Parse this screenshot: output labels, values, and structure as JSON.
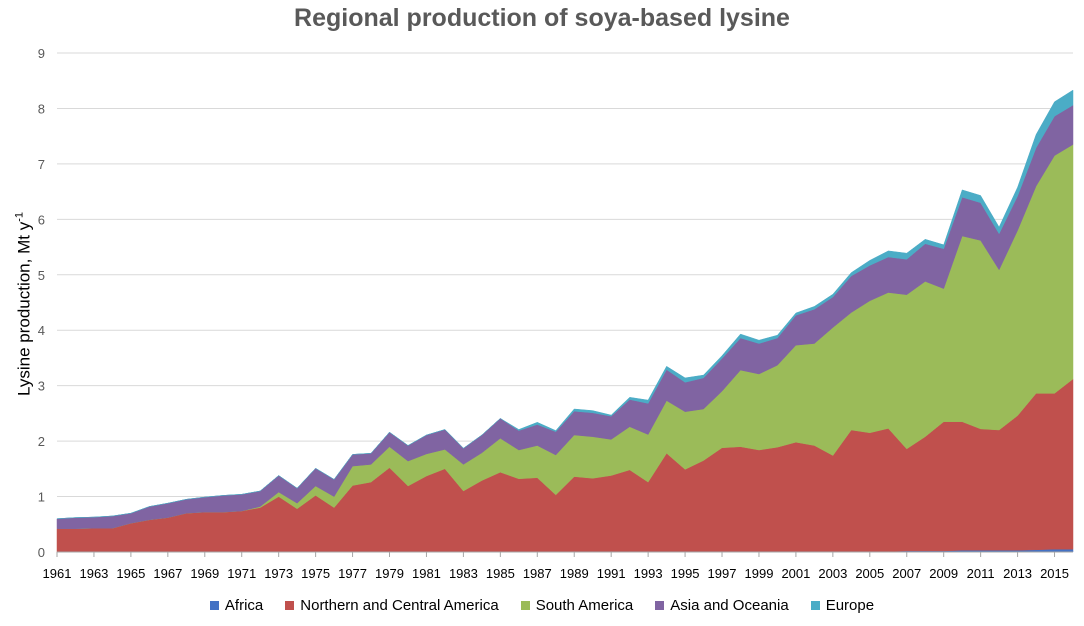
{
  "chart_data": {
    "type": "area",
    "stacked": true,
    "title": "Regional production of soya-based lysine",
    "ylabel": "Lysine production, Mt y",
    "ylabel_superscript": "-1",
    "xlabel": "",
    "ylim": [
      0,
      9
    ],
    "yticks": [
      0,
      1,
      2,
      3,
      4,
      5,
      6,
      7,
      8,
      9
    ],
    "xlim": [
      1961,
      2016
    ],
    "xticks": [
      1961,
      1963,
      1965,
      1967,
      1969,
      1971,
      1973,
      1975,
      1977,
      1979,
      1981,
      1983,
      1985,
      1987,
      1989,
      1991,
      1993,
      1995,
      1997,
      1999,
      2001,
      2003,
      2005,
      2007,
      2009,
      2011,
      2013,
      2015
    ],
    "grid": "horizontal",
    "legend_position": "bottom",
    "x": [
      1961,
      1962,
      1963,
      1964,
      1965,
      1966,
      1967,
      1968,
      1969,
      1970,
      1971,
      1972,
      1973,
      1974,
      1975,
      1976,
      1977,
      1978,
      1979,
      1980,
      1981,
      1982,
      1983,
      1984,
      1985,
      1986,
      1987,
      1988,
      1989,
      1990,
      1991,
      1992,
      1993,
      1994,
      1995,
      1996,
      1997,
      1998,
      1999,
      2000,
      2001,
      2002,
      2003,
      2004,
      2005,
      2006,
      2007,
      2008,
      2009,
      2010,
      2011,
      2012,
      2013,
      2014,
      2015,
      2016
    ],
    "series": [
      {
        "name": "Africa",
        "color": "#4472c4",
        "values": [
          0,
          0,
          0,
          0,
          0,
          0,
          0,
          0,
          0,
          0,
          0,
          0,
          0,
          0,
          0,
          0,
          0,
          0,
          0,
          0,
          0,
          0,
          0,
          0,
          0,
          0,
          0,
          0,
          0.01,
          0.01,
          0.01,
          0.01,
          0.01,
          0.01,
          0.01,
          0.01,
          0.01,
          0.01,
          0.01,
          0.01,
          0.01,
          0.01,
          0.01,
          0.01,
          0.01,
          0.01,
          0.02,
          0.02,
          0.02,
          0.03,
          0.03,
          0.03,
          0.03,
          0.04,
          0.05,
          0.05
        ]
      },
      {
        "name": "Northern and Central America",
        "color": "#c0504d",
        "values": [
          0.42,
          0.42,
          0.43,
          0.43,
          0.52,
          0.58,
          0.62,
          0.7,
          0.72,
          0.72,
          0.74,
          0.8,
          1.0,
          0.78,
          1.02,
          0.8,
          1.2,
          1.26,
          1.52,
          1.19,
          1.37,
          1.5,
          1.1,
          1.29,
          1.44,
          1.32,
          1.34,
          1.03,
          1.35,
          1.32,
          1.37,
          1.47,
          1.25,
          1.77,
          1.48,
          1.64,
          1.87,
          1.89,
          1.83,
          1.88,
          1.97,
          1.91,
          1.73,
          2.19,
          2.14,
          2.22,
          1.84,
          2.06,
          2.33,
          2.32,
          2.19,
          2.17,
          2.43,
          2.82,
          2.81,
          3.07
        ]
      },
      {
        "name": "South America",
        "color": "#9bbb59",
        "values": [
          0,
          0,
          0,
          0,
          0,
          0,
          0,
          0,
          0,
          0,
          0,
          0.02,
          0.08,
          0.1,
          0.17,
          0.2,
          0.35,
          0.32,
          0.38,
          0.45,
          0.4,
          0.35,
          0.48,
          0.5,
          0.61,
          0.52,
          0.58,
          0.72,
          0.75,
          0.75,
          0.65,
          0.78,
          0.86,
          0.95,
          1.04,
          0.93,
          1.02,
          1.38,
          1.37,
          1.48,
          1.75,
          1.84,
          2.31,
          2.12,
          2.38,
          2.45,
          2.78,
          2.8,
          2.4,
          3.35,
          3.4,
          2.89,
          3.34,
          3.74,
          4.29,
          4.23
        ]
      },
      {
        "name": "Asia and Oceania",
        "color": "#8064a2",
        "values": [
          0.18,
          0.2,
          0.2,
          0.22,
          0.18,
          0.24,
          0.26,
          0.25,
          0.27,
          0.3,
          0.3,
          0.28,
          0.3,
          0.27,
          0.32,
          0.31,
          0.21,
          0.2,
          0.26,
          0.28,
          0.34,
          0.36,
          0.29,
          0.32,
          0.36,
          0.35,
          0.38,
          0.42,
          0.43,
          0.43,
          0.42,
          0.49,
          0.56,
          0.56,
          0.53,
          0.56,
          0.59,
          0.58,
          0.55,
          0.49,
          0.54,
          0.62,
          0.55,
          0.66,
          0.64,
          0.64,
          0.64,
          0.68,
          0.72,
          0.7,
          0.68,
          0.65,
          0.62,
          0.69,
          0.71,
          0.71
        ]
      },
      {
        "name": "Europe",
        "color": "#4bacc6",
        "values": [
          0,
          0,
          0,
          0,
          0,
          0,
          0,
          0,
          0,
          0,
          0,
          0,
          0,
          0,
          0,
          0,
          0,
          0,
          0,
          0,
          0,
          0,
          0,
          0,
          0,
          0.02,
          0.04,
          0.02,
          0.04,
          0.04,
          0.02,
          0.04,
          0.06,
          0.06,
          0.08,
          0.05,
          0.05,
          0.07,
          0.06,
          0.05,
          0.04,
          0.05,
          0.05,
          0.06,
          0.09,
          0.11,
          0.11,
          0.08,
          0.07,
          0.13,
          0.13,
          0.12,
          0.16,
          0.24,
          0.26,
          0.27
        ]
      }
    ]
  }
}
